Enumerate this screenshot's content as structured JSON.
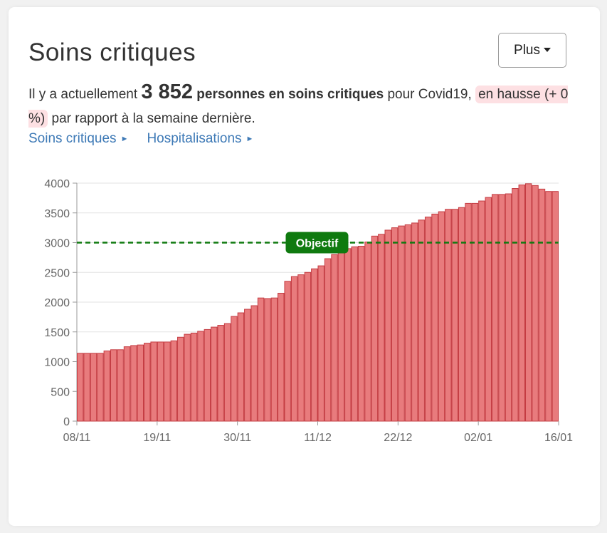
{
  "title": "Soins critiques",
  "more_button": {
    "label": "Plus"
  },
  "summary": {
    "prefix": "Il y a actuellement",
    "count": "3 852",
    "count_label": "personnes en soins critiques",
    "after_count": "pour Covid19,",
    "trend": "en hausse (+ 0 %)",
    "suffix": "par rapport à la semaine dernière."
  },
  "links": [
    {
      "label": "Soins critiques"
    },
    {
      "label": "Hospitalisations"
    }
  ],
  "colors": {
    "bar_fill": "#e87b7d",
    "bar_stroke": "#c43c42",
    "objective_line": "#0f7a0f",
    "link": "#3d79b6",
    "trend_bg": "#fde0e3"
  },
  "chart_data": {
    "type": "bar",
    "x_tick_labels": [
      "08/11",
      "19/11",
      "30/11",
      "11/12",
      "22/12",
      "02/01",
      "16/01"
    ],
    "y_ticks": [
      0,
      500,
      1000,
      1500,
      2000,
      2500,
      3000,
      3500,
      4000
    ],
    "ylim": [
      0,
      4000
    ],
    "grid": true,
    "values": [
      1140,
      1140,
      1140,
      1140,
      1180,
      1200,
      1200,
      1250,
      1270,
      1280,
      1310,
      1330,
      1330,
      1330,
      1350,
      1410,
      1460,
      1480,
      1510,
      1540,
      1580,
      1610,
      1640,
      1760,
      1820,
      1880,
      1940,
      2070,
      2060,
      2070,
      2150,
      2350,
      2430,
      2460,
      2500,
      2560,
      2610,
      2730,
      2800,
      2880,
      2900,
      2930,
      2940,
      3010,
      3110,
      3140,
      3210,
      3250,
      3280,
      3300,
      3330,
      3380,
      3430,
      3480,
      3520,
      3560,
      3560,
      3590,
      3660,
      3660,
      3700,
      3760,
      3810,
      3810,
      3820,
      3910,
      3970,
      3990,
      3960,
      3900,
      3860,
      3860
    ],
    "annotations": [
      {
        "type": "horizontal-line",
        "y": 3000,
        "label": "Objectif",
        "style": "dashed",
        "color": "#0f7a0f"
      }
    ]
  }
}
